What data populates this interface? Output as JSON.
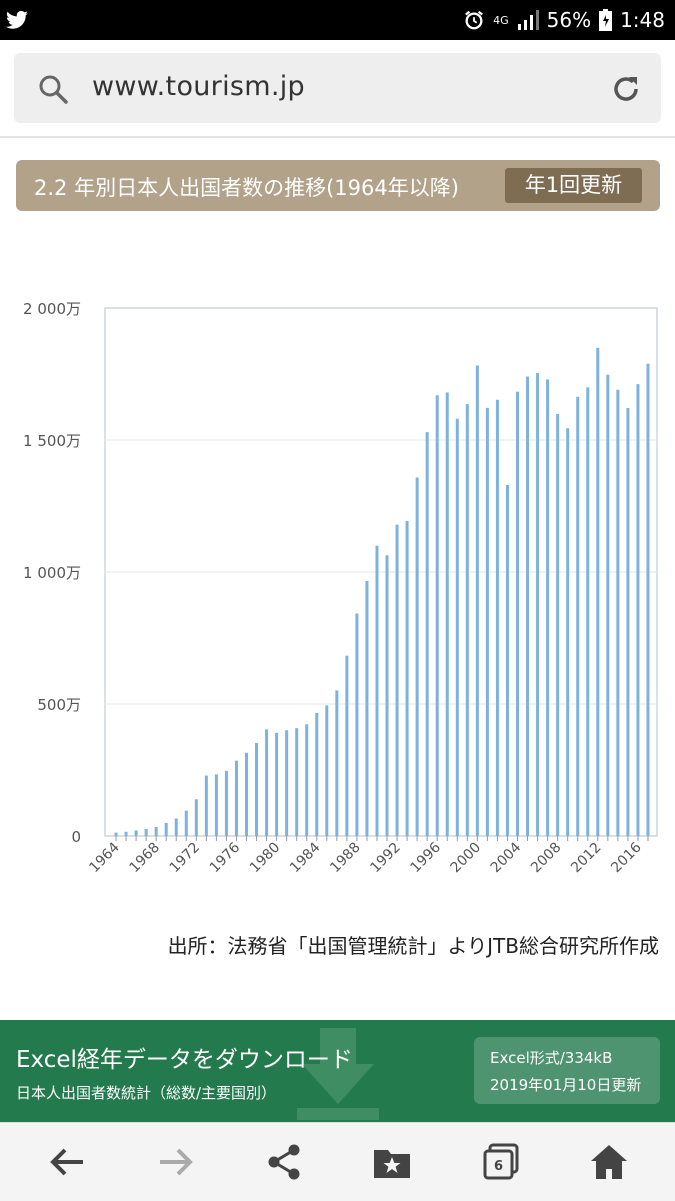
{
  "status_bar": {
    "network": "4G",
    "battery": "56%",
    "time": "1:48",
    "icons": [
      "twitter-icon",
      "alarm-icon",
      "signal-icon",
      "battery-icon"
    ]
  },
  "url_bar": {
    "url": "www.tourism.jp"
  },
  "section": {
    "title": "2.2 年別日本人出国者数の推移(1964年以降)",
    "badge": "年1回更新"
  },
  "chart_data": {
    "type": "bar",
    "title": "",
    "xlabel": "",
    "ylabel": "",
    "ylim": [
      0,
      20000000
    ],
    "y_ticks": [
      {
        "value": 0,
        "label": "0"
      },
      {
        "value": 5000000,
        "label": "500万"
      },
      {
        "value": 10000000,
        "label": "1 000万"
      },
      {
        "value": 15000000,
        "label": "1 500万"
      },
      {
        "value": 20000000,
        "label": "2 000万"
      }
    ],
    "x_tick_labels": [
      "1964",
      "1968",
      "1972",
      "1976",
      "1980",
      "1984",
      "1988",
      "1992",
      "1996",
      "2000",
      "2004",
      "2008",
      "2012",
      "2016"
    ],
    "grid": true,
    "bar_color": "#7eb2de",
    "categories": [
      "1964",
      "1965",
      "1966",
      "1967",
      "1968",
      "1969",
      "1970",
      "1971",
      "1972",
      "1973",
      "1974",
      "1975",
      "1976",
      "1977",
      "1978",
      "1979",
      "1980",
      "1981",
      "1982",
      "1983",
      "1984",
      "1985",
      "1986",
      "1987",
      "1988",
      "1989",
      "1990",
      "1991",
      "1992",
      "1993",
      "1994",
      "1995",
      "1996",
      "1997",
      "1998",
      "1999",
      "2000",
      "2001",
      "2002",
      "2003",
      "2004",
      "2005",
      "2006",
      "2007",
      "2008",
      "2009",
      "2010",
      "2011",
      "2012",
      "2013",
      "2014",
      "2015",
      "2016",
      "2017"
    ],
    "values": [
      128000,
      159000,
      212000,
      268000,
      344000,
      493000,
      663000,
      961000,
      1392000,
      2290000,
      2336000,
      2466000,
      2853000,
      3151000,
      3525000,
      4038000,
      3909000,
      4007000,
      4086000,
      4232000,
      4659000,
      4948000,
      5516000,
      6829000,
      8427000,
      9662000,
      10997000,
      10634000,
      11791000,
      11934000,
      13579000,
      15298000,
      16695000,
      16803000,
      15806000,
      16358000,
      17819000,
      16216000,
      16523000,
      13296000,
      16831000,
      17404000,
      17535000,
      17295000,
      15987000,
      15446000,
      16637000,
      16994000,
      18491000,
      17473000,
      16903000,
      16213000,
      17116000,
      17889000
    ]
  },
  "source_note": "出所：法務省「出国管理統計」よりJTB総合研究所作成",
  "download": {
    "title": "Excel経年データをダウンロード",
    "subtitle": "日本人出国者数統計（総数/主要国別）",
    "format": "Excel形式/334kB",
    "updated": "2019年01月10日更新"
  },
  "bottom_nav": {
    "tab_count": "6",
    "icons": [
      "back-arrow-icon",
      "forward-arrow-icon",
      "share-icon",
      "bookmarks-icon",
      "tabs-icon",
      "home-icon"
    ]
  }
}
